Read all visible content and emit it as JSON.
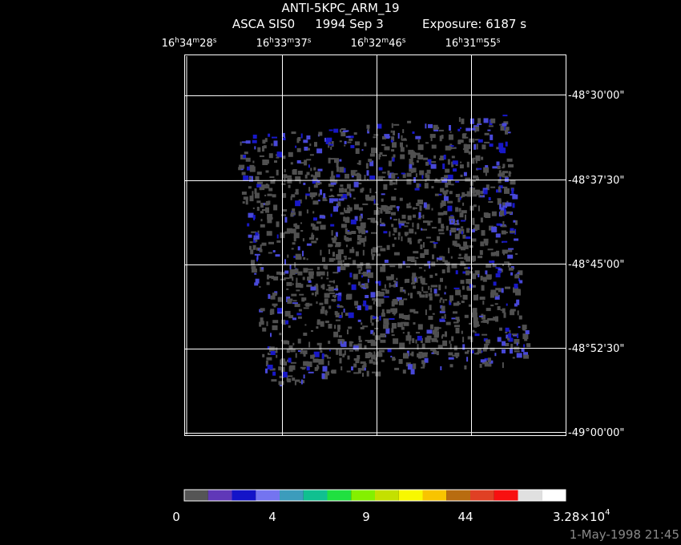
{
  "header": {
    "title": "ANTI-5KPC_ARM_19",
    "instrument": "ASCA SIS0",
    "date": "1994 Sep  3",
    "exposure": "Exposure:  6187 s"
  },
  "ra_labels": [
    [
      "16",
      "h",
      "34",
      "m",
      "28",
      "s"
    ],
    [
      "16",
      "h",
      "33",
      "m",
      "37",
      "s"
    ],
    [
      "16",
      "h",
      "32",
      "m",
      "46",
      "s"
    ],
    [
      "16",
      "h",
      "31",
      "m",
      "55",
      "s"
    ]
  ],
  "dec_labels": [
    "-48°30'00\"",
    "-48°37'30\"",
    "-48°45'00\"",
    "-48°52'30\"",
    "-49°00'00\""
  ],
  "colorbar": {
    "colors": [
      "#555555",
      "#6038b8",
      "#1414c8",
      "#7474f0",
      "#3c9cbc",
      "#10c090",
      "#20e040",
      "#84f000",
      "#c4e000",
      "#f8f800",
      "#f8c400",
      "#b86c10",
      "#e04024",
      "#f81010",
      "#e0e0e0",
      "#ffffff"
    ],
    "labels": [
      "0",
      "4",
      "9",
      "44"
    ],
    "max_label": [
      "3.28×10",
      "4"
    ]
  },
  "timestamp": "1-May-1998 21:45"
}
